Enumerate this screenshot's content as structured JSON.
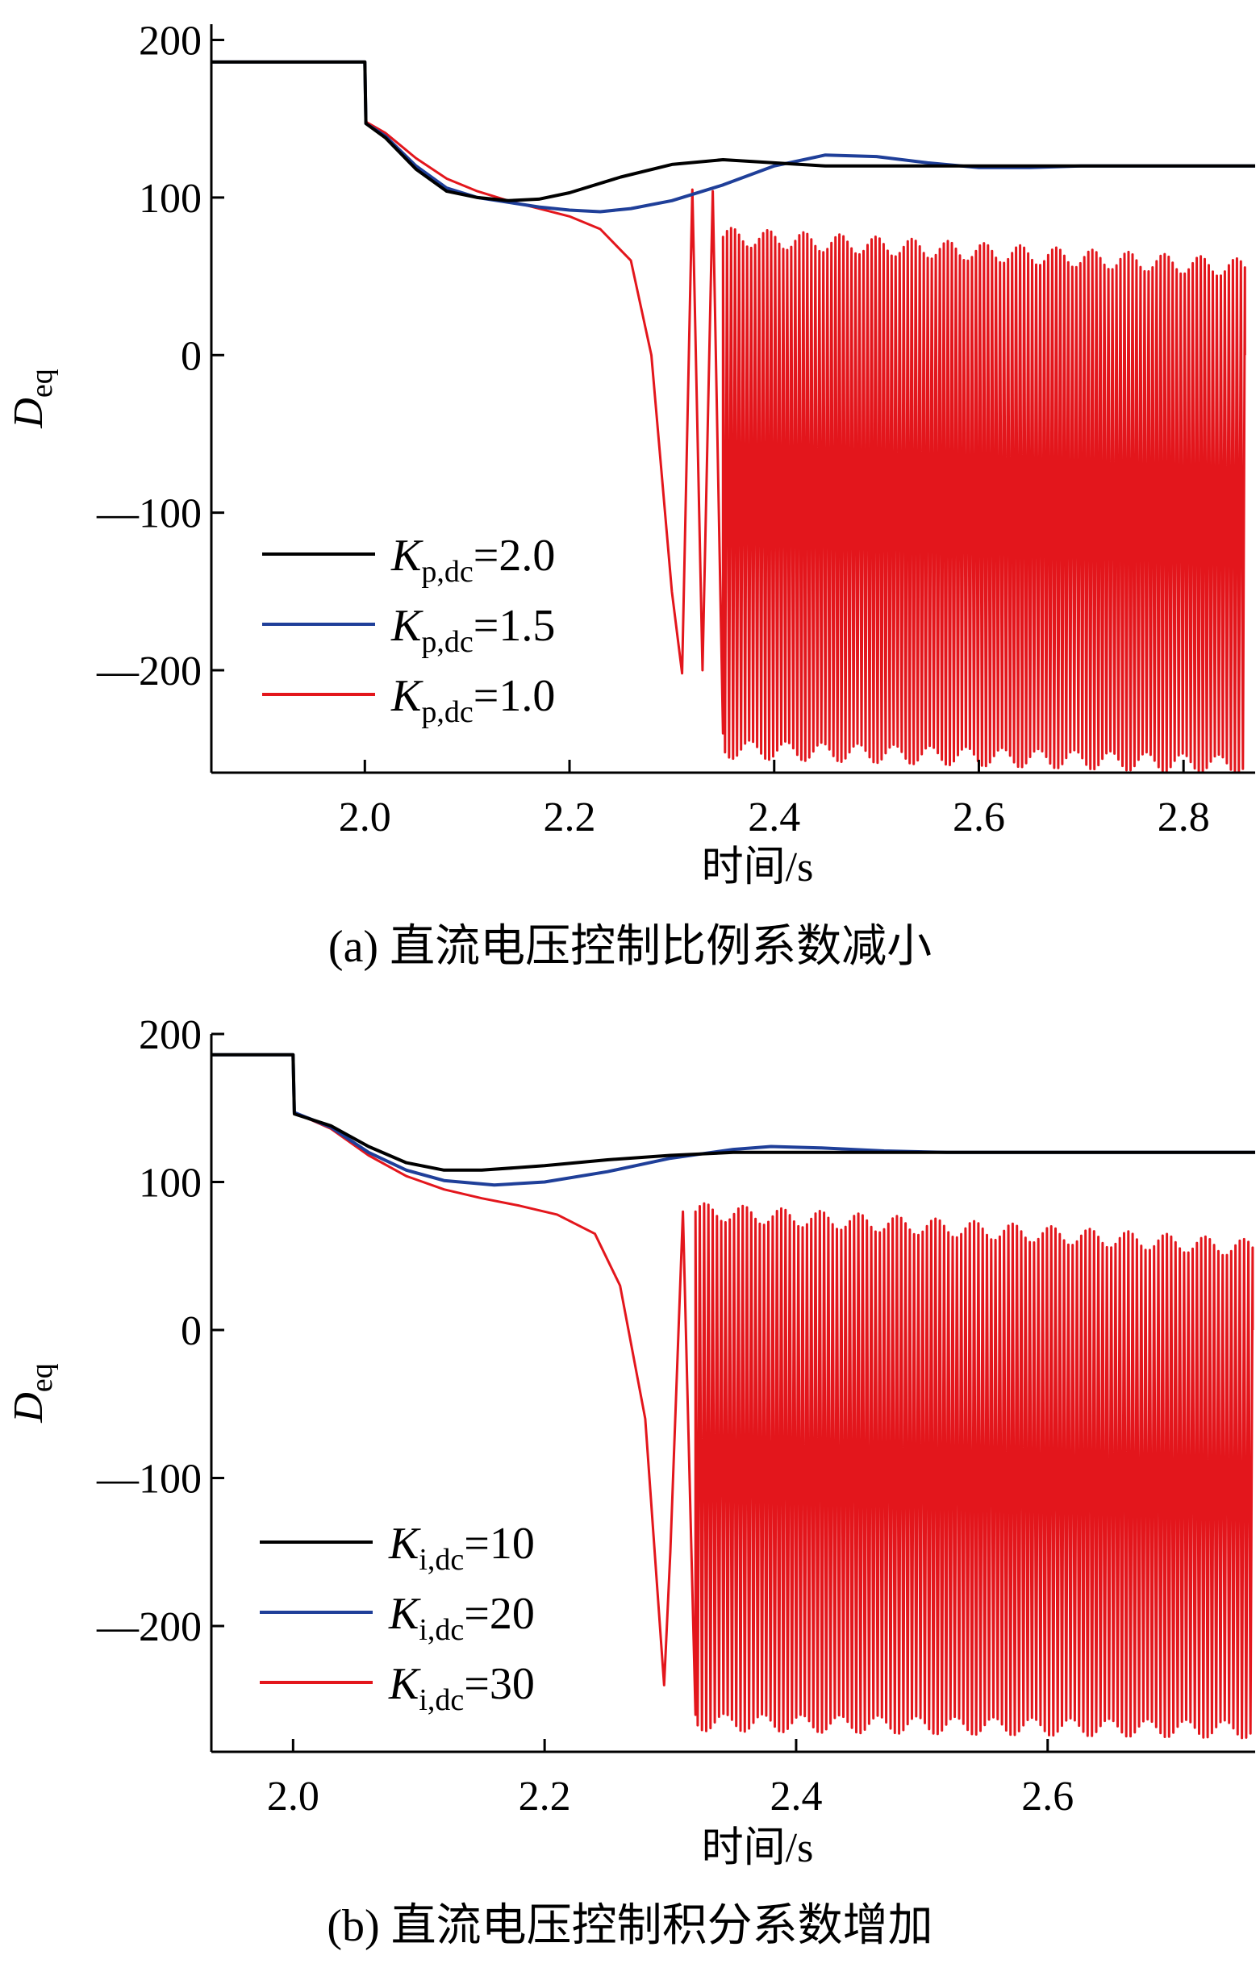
{
  "chart_data": [
    {
      "type": "line",
      "panel": "(a)",
      "caption": "(a)  直流电压控制比例系数减小",
      "xlabel": "时间/s",
      "ylabel": "D",
      "ylabel_sub": "eq",
      "xlim": [
        1.85,
        2.87
      ],
      "ylim": [
        -265,
        210
      ],
      "xticks": [
        2.0,
        2.2,
        2.4,
        2.6,
        2.8
      ],
      "xtick_labels": [
        "2.0",
        "2.2",
        "2.4",
        "2.6",
        "2.8"
      ],
      "yticks": [
        200,
        100,
        0,
        -100,
        -200
      ],
      "ytick_labels": [
        "200",
        "100",
        "0",
        "—100",
        "—200"
      ],
      "legend_position": "lower-left",
      "series": [
        {
          "name": "K",
          "sub": "p,dc",
          "value_text": "=2.0",
          "color": "#000000",
          "x": [
            1.85,
            2.0,
            2.001,
            2.02,
            2.05,
            2.08,
            2.11,
            2.14,
            2.17,
            2.2,
            2.25,
            2.3,
            2.35,
            2.4,
            2.45,
            2.5,
            2.55,
            2.6,
            2.7,
            2.8,
            2.87
          ],
          "y": [
            186,
            186,
            147,
            138,
            118,
            104,
            100,
            98,
            99,
            103,
            113,
            121,
            124,
            122,
            120,
            120,
            120,
            120,
            120,
            120,
            120
          ]
        },
        {
          "name": "K",
          "sub": "p,dc",
          "value_text": "=1.5",
          "color": "#1f3f99",
          "x": [
            1.85,
            2.0,
            2.001,
            2.02,
            2.05,
            2.08,
            2.11,
            2.14,
            2.17,
            2.2,
            2.23,
            2.26,
            2.3,
            2.35,
            2.4,
            2.45,
            2.5,
            2.55,
            2.6,
            2.65,
            2.7,
            2.8,
            2.87
          ],
          "y": [
            186,
            186,
            147,
            139,
            120,
            106,
            100,
            97,
            94,
            92,
            91,
            93,
            98,
            108,
            120,
            127,
            126,
            122,
            119,
            119,
            120,
            120,
            120
          ]
        },
        {
          "name": "K",
          "sub": "p,dc",
          "value_text": "=1.0",
          "color": "#e3161c",
          "x": [
            1.85,
            2.0,
            2.001,
            2.02,
            2.05,
            2.08,
            2.11,
            2.14,
            2.17,
            2.2,
            2.23,
            2.26,
            2.28,
            2.3,
            2.31,
            2.32,
            2.33,
            2.34,
            2.35
          ],
          "y": [
            186,
            186,
            148,
            141,
            125,
            112,
            104,
            98,
            93,
            88,
            80,
            60,
            0,
            -150,
            -202,
            105,
            -200,
            104,
            -240
          ],
          "oscillation": {
            "start": 2.35,
            "end": 2.86,
            "upper": [
              75,
              55
            ],
            "lower": [
              -250,
              -260
            ]
          }
        }
      ]
    },
    {
      "type": "line",
      "panel": "(b)",
      "caption": "(b)  直流电压控制积分系数增加",
      "xlabel": "时间/s",
      "ylabel": "D",
      "ylabel_sub": "eq",
      "xlim": [
        1.935,
        2.765
      ],
      "ylim": [
        -285,
        200
      ],
      "xticks": [
        2.0,
        2.2,
        2.4,
        2.6
      ],
      "xtick_labels": [
        "2.0",
        "2.2",
        "2.4",
        "2.6"
      ],
      "yticks": [
        200,
        100,
        0,
        -100,
        -200
      ],
      "ytick_labels": [
        "200",
        "100",
        "0",
        "—100",
        "—200"
      ],
      "legend_position": "lower-left",
      "series": [
        {
          "name": "K",
          "sub": "i,dc",
          "value_text": "=10",
          "color": "#000000",
          "x": [
            1.935,
            2.0,
            2.001,
            2.03,
            2.06,
            2.09,
            2.12,
            2.15,
            2.2,
            2.25,
            2.3,
            2.35,
            2.4,
            2.5,
            2.6,
            2.7,
            2.765
          ],
          "y": [
            186,
            186,
            146,
            138,
            124,
            113,
            108,
            108,
            111,
            115,
            118,
            120,
            120,
            120,
            120,
            120,
            120
          ]
        },
        {
          "name": "K",
          "sub": "i,dc",
          "value_text": "=20",
          "color": "#1f3f99",
          "x": [
            1.935,
            2.0,
            2.001,
            2.03,
            2.06,
            2.09,
            2.12,
            2.16,
            2.2,
            2.25,
            2.3,
            2.35,
            2.38,
            2.42,
            2.47,
            2.52,
            2.6,
            2.7,
            2.765
          ],
          "y": [
            186,
            186,
            147,
            137,
            120,
            108,
            101,
            98,
            100,
            107,
            116,
            122,
            124,
            123,
            121,
            120,
            120,
            120,
            120
          ]
        },
        {
          "name": "K",
          "sub": "i,dc",
          "value_text": "=30",
          "color": "#e3161c",
          "x": [
            1.935,
            2.0,
            2.001,
            2.03,
            2.06,
            2.09,
            2.12,
            2.15,
            2.18,
            2.21,
            2.24,
            2.26,
            2.28,
            2.29,
            2.295,
            2.3,
            2.31,
            2.32
          ],
          "y": [
            186,
            186,
            147,
            136,
            118,
            104,
            95,
            89,
            84,
            78,
            65,
            30,
            -60,
            -180,
            -240,
            -150,
            80,
            -260
          ],
          "oscillation": {
            "start": 2.32,
            "end": 2.763,
            "upper": [
              80,
              55
            ],
            "lower": [
              -265,
              -270
            ]
          }
        }
      ]
    }
  ]
}
